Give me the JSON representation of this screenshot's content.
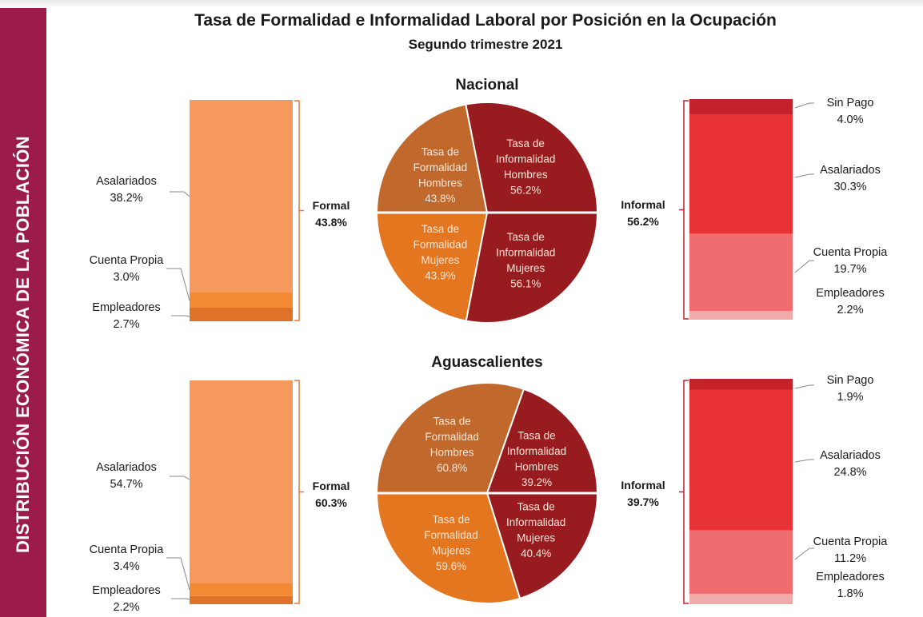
{
  "sidebar": {
    "label": "DISTRIBUCIÓN ECONÓMICA DE LA POBLACIÓN"
  },
  "title": "Tasa de Formalidad e Informalidad Laboral por Posición en la Ocupación",
  "subtitle": "Segundo trimestre 2021",
  "colors": {
    "formal_asalariados": "#f59a5c",
    "formal_cuenta_propia": "#f28a33",
    "formal_empleadores": "#de7228",
    "informal_sin_pago": "#c4222b",
    "informal_asalariados": "#e93236",
    "informal_cuenta_propia": "#ef6d6e",
    "informal_empleadores": "#f1aaaa",
    "pie_formal_hombres": "#c1692c",
    "pie_informal_hombres": "#981b20",
    "pie_formal_mujeres": "#e3761f",
    "pie_informal_mujeres": "#981b20",
    "bracket": "#e07a3a",
    "bracket_informal": "#c4222b"
  },
  "chart_data": [
    {
      "region": "Nacional",
      "formal": {
        "label": "Formal",
        "value_label": "43.8%",
        "total": 43.8,
        "segments": [
          {
            "key": "asalariados",
            "name": "Asalariados",
            "value": 38.2,
            "value_label": "38.2%"
          },
          {
            "key": "cuenta_propia",
            "name": "Cuenta Propia",
            "value": 3.0,
            "value_label": "3.0%"
          },
          {
            "key": "empleadores",
            "name": "Empleadores",
            "value": 2.7,
            "value_label": "2.7%"
          }
        ]
      },
      "informal": {
        "label": "Informal",
        "value_label": "56.2%",
        "total": 56.2,
        "segments": [
          {
            "key": "sin_pago",
            "name": "Sin Pago",
            "value": 4.0,
            "value_label": "4.0%"
          },
          {
            "key": "asalariados",
            "name": "Asalariados",
            "value": 30.3,
            "value_label": "30.3%"
          },
          {
            "key": "cuenta_propia",
            "name": "Cuenta Propia",
            "value": 19.7,
            "value_label": "19.7%"
          },
          {
            "key": "empleadores",
            "name": "Empleadores",
            "value": 2.2,
            "value_label": "2.2%"
          }
        ]
      },
      "pies": {
        "top": [
          {
            "key": "formal_hombres",
            "lines": [
              "Tasa de",
              "Formalidad",
              "Hombres"
            ],
            "value": 43.8,
            "value_label": "43.8%"
          },
          {
            "key": "informal_hombres",
            "lines": [
              "Tasa de",
              "Informalidad",
              "Hombres"
            ],
            "value": 56.2,
            "value_label": "56.2%"
          }
        ],
        "bottom": [
          {
            "key": "formal_mujeres",
            "lines": [
              "Tasa de",
              "Formalidad",
              "Mujeres"
            ],
            "value": 43.9,
            "value_label": "43.9%"
          },
          {
            "key": "informal_mujeres",
            "lines": [
              "Tasa de",
              "Informalidad",
              "Mujeres"
            ],
            "value": 56.1,
            "value_label": "56.1%"
          }
        ]
      }
    },
    {
      "region": "Aguascalientes",
      "formal": {
        "label": "Formal",
        "value_label": "60.3%",
        "total": 60.3,
        "segments": [
          {
            "key": "asalariados",
            "name": "Asalariados",
            "value": 54.7,
            "value_label": "54.7%"
          },
          {
            "key": "cuenta_propia",
            "name": "Cuenta Propia",
            "value": 3.4,
            "value_label": "3.4%"
          },
          {
            "key": "empleadores",
            "name": "Empleadores",
            "value": 2.2,
            "value_label": "2.2%"
          }
        ]
      },
      "informal": {
        "label": "Informal",
        "value_label": "39.7%",
        "total": 39.7,
        "segments": [
          {
            "key": "sin_pago",
            "name": "Sin Pago",
            "value": 1.9,
            "value_label": "1.9%"
          },
          {
            "key": "asalariados",
            "name": "Asalariados",
            "value": 24.8,
            "value_label": "24.8%"
          },
          {
            "key": "cuenta_propia",
            "name": "Cuenta Propia",
            "value": 11.2,
            "value_label": "11.2%"
          },
          {
            "key": "empleadores",
            "name": "Empleadores",
            "value": 1.8,
            "value_label": "1.8%"
          }
        ]
      },
      "pies": {
        "top": [
          {
            "key": "formal_hombres",
            "lines": [
              "Tasa de",
              "Formalidad",
              "Hombres"
            ],
            "value": 60.8,
            "value_label": "60.8%"
          },
          {
            "key": "informal_hombres",
            "lines": [
              "Tasa de",
              "Informalidad",
              "Hombres"
            ],
            "value": 39.2,
            "value_label": "39.2%"
          }
        ],
        "bottom": [
          {
            "key": "formal_mujeres",
            "lines": [
              "Tasa de",
              "Formalidad",
              "Mujeres"
            ],
            "value": 59.6,
            "value_label": "59.6%"
          },
          {
            "key": "informal_mujeres",
            "lines": [
              "Tasa de",
              "Informalidad",
              "Mujeres"
            ],
            "value": 40.4,
            "value_label": "40.4%"
          }
        ]
      }
    }
  ]
}
